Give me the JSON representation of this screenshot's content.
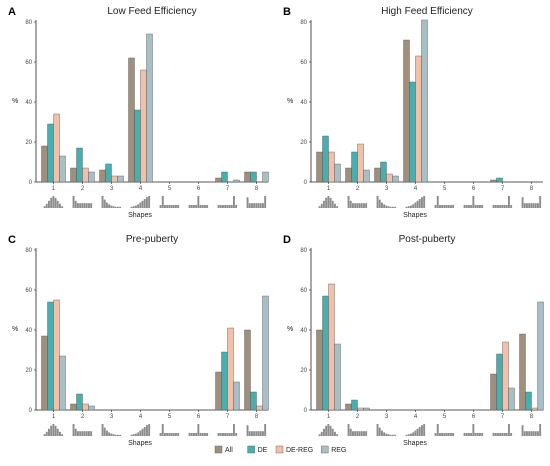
{
  "colors": {
    "All": "#a08f7c",
    "DE": "#48aeb0",
    "DE-REG": "#f2bfa8",
    "REG": "#a8bfc7"
  },
  "legend": [
    "All",
    "DE",
    "DE-REG",
    "REG"
  ],
  "chart_data": [
    {
      "type": "bar",
      "panel_label": "A",
      "title": "Low Feed Efficiency",
      "xlabel": "Shapes",
      "ylabel": "%",
      "categories": [
        "1",
        "2",
        "3",
        "4",
        "5",
        "6",
        "7",
        "8"
      ],
      "ylim": [
        0,
        80
      ],
      "yticks": [
        0,
        20,
        40,
        60,
        80
      ],
      "series": [
        {
          "name": "All",
          "values": [
            18,
            7,
            6,
            62,
            0,
            0,
            2,
            5
          ]
        },
        {
          "name": "DE",
          "values": [
            29,
            17,
            9,
            36,
            0,
            0,
            5,
            5
          ]
        },
        {
          "name": "DE-REG",
          "values": [
            34,
            7,
            3,
            56,
            0,
            0,
            0,
            0
          ]
        },
        {
          "name": "REG",
          "values": [
            13,
            5,
            3,
            74,
            0,
            0,
            1,
            5
          ]
        }
      ]
    },
    {
      "type": "bar",
      "panel_label": "B",
      "title": "High Feed Efficiency",
      "xlabel": "Shapes",
      "ylabel": "%",
      "categories": [
        "1",
        "2",
        "3",
        "4",
        "5",
        "6",
        "7",
        "8"
      ],
      "ylim": [
        0,
        80
      ],
      "yticks": [
        0,
        20,
        40,
        60,
        80
      ],
      "series": [
        {
          "name": "All",
          "values": [
            15,
            7,
            7,
            71,
            0,
            0,
            1,
            0
          ]
        },
        {
          "name": "DE",
          "values": [
            23,
            15,
            10,
            50,
            0,
            0,
            2,
            0
          ]
        },
        {
          "name": "DE-REG",
          "values": [
            15,
            19,
            4,
            63,
            0,
            0,
            0,
            0
          ]
        },
        {
          "name": "REG",
          "values": [
            9,
            6,
            3,
            81,
            0,
            0,
            0,
            0
          ]
        }
      ]
    },
    {
      "type": "bar",
      "panel_label": "C",
      "title": "Pre-puberty",
      "xlabel": "Shapes",
      "ylabel": "%",
      "categories": [
        "1",
        "2",
        "3",
        "4",
        "5",
        "6",
        "7",
        "8"
      ],
      "ylim": [
        0,
        80
      ],
      "yticks": [
        0,
        20,
        40,
        60,
        80
      ],
      "series": [
        {
          "name": "All",
          "values": [
            37,
            3,
            0,
            0,
            0,
            0,
            19,
            40
          ]
        },
        {
          "name": "DE",
          "values": [
            54,
            8,
            0,
            0,
            0,
            0,
            29,
            9
          ]
        },
        {
          "name": "DE-REG",
          "values": [
            55,
            3,
            0,
            0,
            0,
            0,
            41,
            2
          ]
        },
        {
          "name": "REG",
          "values": [
            27,
            2,
            0,
            0,
            0,
            0,
            14,
            57
          ]
        }
      ]
    },
    {
      "type": "bar",
      "panel_label": "D",
      "title": "Post-puberty",
      "xlabel": "Shapes",
      "ylabel": "%",
      "categories": [
        "1",
        "2",
        "3",
        "4",
        "5",
        "6",
        "7",
        "8"
      ],
      "ylim": [
        0,
        80
      ],
      "yticks": [
        0,
        20,
        40,
        60,
        80
      ],
      "series": [
        {
          "name": "All",
          "values": [
            40,
            3,
            0,
            0,
            0,
            0,
            18,
            38
          ]
        },
        {
          "name": "DE",
          "values": [
            57,
            5,
            0,
            0,
            0,
            0,
            28,
            9
          ]
        },
        {
          "name": "DE-REG",
          "values": [
            63,
            1,
            0,
            0,
            0,
            0,
            34,
            1
          ]
        },
        {
          "name": "REG",
          "values": [
            33,
            1,
            0,
            0,
            0,
            0,
            11,
            54
          ]
        }
      ]
    }
  ]
}
